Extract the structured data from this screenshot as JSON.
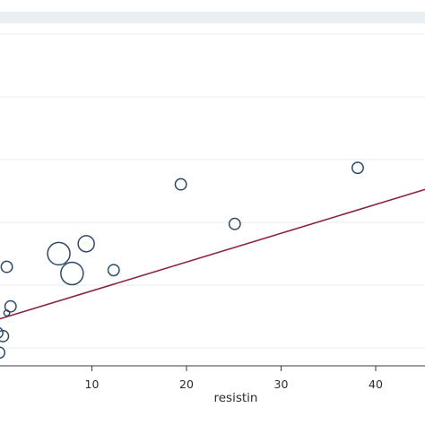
{
  "chart_data": {
    "type": "scatter",
    "title": "",
    "xlabel": "resistin",
    "ylabel": "",
    "xlim": [
      0,
      47
    ],
    "x_ticks": [
      "10",
      "20",
      "30",
      "40"
    ],
    "grid": true,
    "colors": {
      "marker_edge": "#2c4a66",
      "fit_line": "#8b2346",
      "grid": "#e6ecf0",
      "plot_band": "#e8eef2"
    },
    "points": [
      {
        "x": 0.0,
        "y": 0.1,
        "weight": "small"
      },
      {
        "x": 0.6,
        "y": 0.09,
        "weight": "small"
      },
      {
        "x": 1.4,
        "y": 0.18,
        "weight": "small"
      },
      {
        "x": 1.0,
        "y": 0.3,
        "weight": "small"
      },
      {
        "x": 6.5,
        "y": 0.34,
        "weight": "large"
      },
      {
        "x": 9.4,
        "y": 0.37,
        "weight": "medium"
      },
      {
        "x": 7.9,
        "y": 0.28,
        "weight": "large"
      },
      {
        "x": 12.3,
        "y": 0.29,
        "weight": "small"
      },
      {
        "x": 1.0,
        "y": 0.16,
        "weight": "tiny"
      },
      {
        "x": 0.2,
        "y": 0.04,
        "weight": "small"
      },
      {
        "x": 19.4,
        "y": 0.55,
        "weight": "small"
      },
      {
        "x": 25.1,
        "y": 0.43,
        "weight": "small"
      },
      {
        "x": 38.1,
        "y": 0.6,
        "weight": "small"
      }
    ],
    "fit_line": {
      "x": [
        0,
        47
      ],
      "y": [
        0.14,
        0.55
      ]
    }
  }
}
